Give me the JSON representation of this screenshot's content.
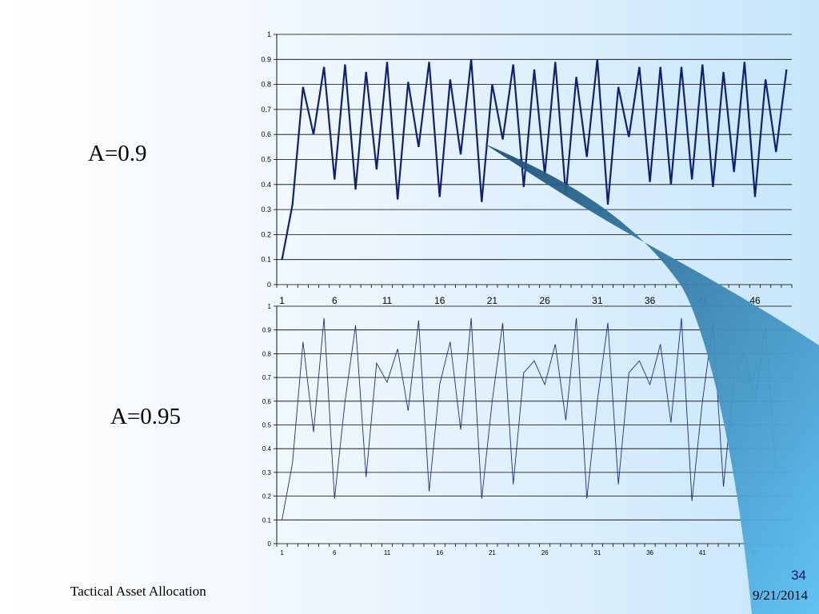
{
  "labels": {
    "top_chart": "A=0.9",
    "bottom_chart": "A=0.95"
  },
  "footer": {
    "title": "Tactical Asset Allocation",
    "date": "9/21/2014",
    "page_number": "34"
  },
  "colors": {
    "top_line": "#0f1f78",
    "bottom_line": "#1c2d88",
    "gridline": "#000000",
    "callout_dark": "#1d4e74",
    "callout_light": "#5cc1f5"
  },
  "chart_data": [
    {
      "type": "line",
      "x": [
        1,
        2,
        3,
        4,
        5,
        6,
        7,
        8,
        9,
        10,
        11,
        12,
        13,
        14,
        15,
        16,
        17,
        18,
        19,
        20,
        21,
        22,
        23,
        24,
        25,
        26,
        27,
        28,
        29,
        30,
        31,
        32,
        33,
        34,
        35,
        36,
        37,
        38,
        39,
        40,
        41,
        42,
        43,
        44,
        45,
        46,
        47,
        48,
        49
      ],
      "x_tick_labels": [
        "1",
        "6",
        "11",
        "16",
        "21",
        "26",
        "31",
        "36",
        "41",
        "46"
      ],
      "y_tick_labels": [
        "0",
        "0.1",
        "0.2",
        "0.3",
        "0.4",
        "0.5",
        "0.6",
        "0.7",
        "0.8",
        "0.9",
        "1"
      ],
      "ylim": [
        0,
        1
      ],
      "grid": true,
      "series": [
        {
          "values": [
            0.1,
            0.32,
            0.79,
            0.6,
            0.87,
            0.42,
            0.88,
            0.38,
            0.85,
            0.46,
            0.89,
            0.34,
            0.81,
            0.55,
            0.89,
            0.35,
            0.82,
            0.52,
            0.9,
            0.33,
            0.8,
            0.58,
            0.88,
            0.39,
            0.86,
            0.44,
            0.89,
            0.36,
            0.83,
            0.51,
            0.9,
            0.32,
            0.79,
            0.59,
            0.87,
            0.41,
            0.87,
            0.4,
            0.87,
            0.42,
            0.88,
            0.39,
            0.85,
            0.45,
            0.89,
            0.35,
            0.82,
            0.53,
            0.86
          ]
        }
      ]
    },
    {
      "type": "line",
      "x": [
        1,
        2,
        3,
        4,
        5,
        6,
        7,
        8,
        9,
        10,
        11,
        12,
        13,
        14,
        15,
        16,
        17,
        18,
        19,
        20,
        21,
        22,
        23,
        24,
        25,
        26,
        27,
        28,
        29,
        30,
        31,
        32,
        33,
        34,
        35,
        36,
        37,
        38,
        39,
        40,
        41,
        42,
        43,
        44,
        45,
        46,
        47,
        48
      ],
      "x_tick_labels": [
        "1",
        "6",
        "11",
        "16",
        "21",
        "26",
        "31",
        "36",
        "41",
        "46"
      ],
      "y_tick_labels": [
        "0",
        "0.1",
        "0.2",
        "0.3",
        "0.4",
        "0.5",
        "0.6",
        "0.7",
        "0.8",
        "0.9",
        "1"
      ],
      "ylim": [
        0,
        1
      ],
      "grid": true,
      "series": [
        {
          "values": [
            0.1,
            0.34,
            0.85,
            0.47,
            0.95,
            0.19,
            0.6,
            0.92,
            0.28,
            0.76,
            0.68,
            0.82,
            0.56,
            0.94,
            0.22,
            0.67,
            0.85,
            0.48,
            0.95,
            0.19,
            0.6,
            0.93,
            0.25,
            0.72,
            0.77,
            0.67,
            0.84,
            0.52,
            0.95,
            0.19,
            0.6,
            0.93,
            0.25,
            0.72,
            0.77,
            0.67,
            0.84,
            0.51,
            0.95,
            0.18,
            0.6,
            0.93,
            0.24,
            0.7,
            0.8,
            0.6,
            0.91,
            0.31
          ]
        }
      ]
    }
  ]
}
